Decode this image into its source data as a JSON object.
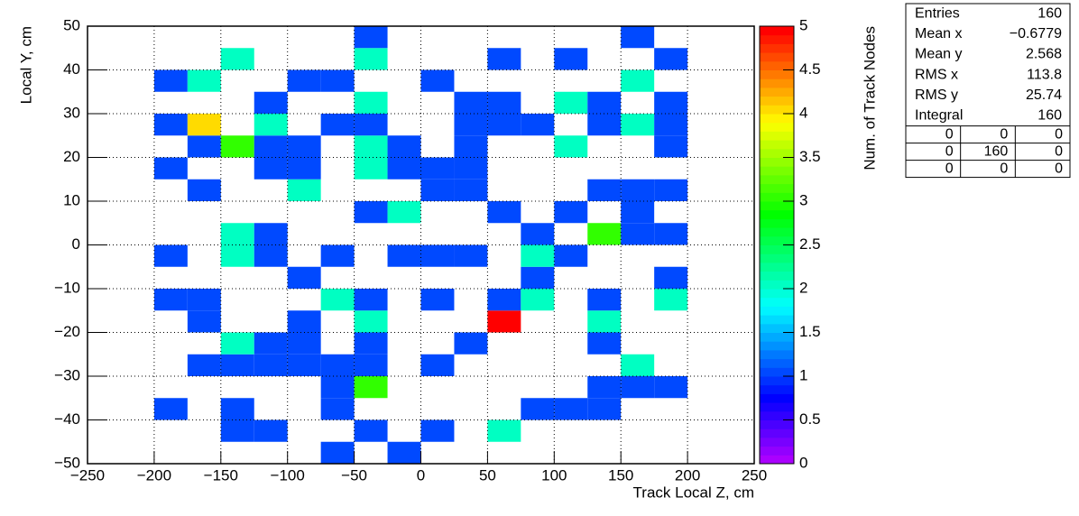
{
  "chart_data": {
    "type": "heatmap",
    "xlabel": "Track Local Z, cm",
    "ylabel": "Local Y, cm",
    "zlabel": "Num. of Track Nodes",
    "xbins": [
      -250,
      -225,
      -200,
      -175,
      -150,
      -125,
      -100,
      -75,
      -50,
      -25,
      0,
      25,
      50,
      75,
      100,
      125,
      150,
      175,
      200,
      225,
      250
    ],
    "ybins": [
      -50,
      -45,
      -40,
      -35,
      -30,
      -25,
      -20,
      -15,
      -10,
      -5,
      0,
      5,
      10,
      15,
      20,
      25,
      30,
      35,
      40,
      45,
      50
    ],
    "z": [
      [
        0,
        0,
        0,
        0,
        0,
        0,
        0,
        1,
        0,
        1,
        0,
        0,
        0,
        0,
        0,
        0,
        0,
        0,
        0,
        0
      ],
      [
        0,
        0,
        0,
        0,
        1,
        1,
        0,
        0,
        1,
        0,
        1,
        0,
        2,
        0,
        0,
        0,
        0,
        0,
        0,
        0
      ],
      [
        0,
        0,
        1,
        0,
        1,
        0,
        0,
        1,
        0,
        0,
        0,
        0,
        0,
        1,
        1,
        1,
        0,
        0,
        0,
        0
      ],
      [
        0,
        0,
        0,
        0,
        0,
        0,
        0,
        1,
        3,
        0,
        0,
        0,
        0,
        0,
        0,
        1,
        1,
        1,
        0,
        0
      ],
      [
        0,
        0,
        0,
        1,
        1,
        1,
        1,
        1,
        1,
        0,
        1,
        0,
        0,
        0,
        0,
        0,
        2,
        0,
        0,
        0
      ],
      [
        0,
        0,
        0,
        0,
        2,
        1,
        1,
        0,
        1,
        0,
        0,
        1,
        0,
        0,
        0,
        1,
        0,
        0,
        0,
        0
      ],
      [
        0,
        0,
        0,
        1,
        0,
        0,
        1,
        0,
        2,
        0,
        0,
        0,
        5,
        0,
        0,
        2,
        0,
        0,
        0,
        0
      ],
      [
        0,
        0,
        1,
        1,
        0,
        0,
        0,
        2,
        1,
        0,
        1,
        0,
        1,
        2,
        0,
        1,
        0,
        2,
        0,
        0
      ],
      [
        0,
        0,
        0,
        0,
        0,
        0,
        1,
        0,
        0,
        0,
        0,
        0,
        0,
        1,
        0,
        0,
        0,
        1,
        0,
        0
      ],
      [
        0,
        0,
        1,
        0,
        2,
        1,
        0,
        1,
        0,
        1,
        1,
        1,
        0,
        2,
        1,
        0,
        0,
        0,
        0,
        0
      ],
      [
        0,
        0,
        0,
        0,
        2,
        1,
        0,
        0,
        0,
        0,
        0,
        0,
        0,
        1,
        0,
        3,
        1,
        1,
        0,
        0
      ],
      [
        0,
        0,
        0,
        0,
        0,
        0,
        0,
        0,
        1,
        2,
        0,
        0,
        1,
        0,
        1,
        0,
        1,
        0,
        0,
        0
      ],
      [
        0,
        0,
        0,
        1,
        0,
        0,
        2,
        0,
        0,
        0,
        1,
        1,
        0,
        0,
        0,
        1,
        1,
        1,
        0,
        0
      ],
      [
        0,
        0,
        1,
        0,
        0,
        1,
        1,
        0,
        2,
        1,
        1,
        1,
        0,
        0,
        0,
        0,
        0,
        0,
        0,
        0
      ],
      [
        0,
        0,
        0,
        1,
        3,
        1,
        1,
        0,
        2,
        1,
        0,
        1,
        0,
        0,
        2,
        0,
        0,
        1,
        0,
        0
      ],
      [
        0,
        0,
        1,
        4,
        0,
        2,
        0,
        1,
        1,
        0,
        0,
        1,
        1,
        1,
        0,
        1,
        2,
        1,
        0,
        0
      ],
      [
        0,
        0,
        0,
        0,
        0,
        1,
        0,
        0,
        2,
        0,
        0,
        1,
        1,
        0,
        2,
        1,
        0,
        1,
        0,
        0
      ],
      [
        0,
        0,
        1,
        2,
        0,
        0,
        1,
        1,
        0,
        0,
        1,
        0,
        0,
        0,
        0,
        0,
        2,
        0,
        0,
        0
      ],
      [
        0,
        0,
        0,
        0,
        2,
        0,
        0,
        0,
        2,
        0,
        0,
        0,
        1,
        0,
        1,
        0,
        0,
        1,
        0,
        0
      ],
      [
        0,
        0,
        0,
        0,
        0,
        0,
        0,
        0,
        1,
        0,
        0,
        0,
        0,
        0,
        0,
        0,
        1,
        0,
        0,
        0
      ]
    ],
    "xlim": [
      -250,
      250
    ],
    "xticks": [
      {
        "value": -250,
        "label": "−250"
      },
      {
        "value": -200,
        "label": "−200"
      },
      {
        "value": -150,
        "label": "−150"
      },
      {
        "value": -100,
        "label": "−100"
      },
      {
        "value": -50,
        "label": "−50"
      },
      0,
      50,
      100,
      150,
      200,
      250
    ],
    "ylim": [
      -50,
      50
    ],
    "yticks": [
      {
        "value": -50,
        "label": "−50"
      },
      {
        "value": -40,
        "label": "−40"
      },
      {
        "value": -30,
        "label": "−30"
      },
      {
        "value": -20,
        "label": "−20"
      },
      {
        "value": -10,
        "label": "−10"
      },
      0,
      10,
      20,
      30,
      40,
      50
    ],
    "zlim": [
      0,
      5
    ],
    "zticks": [
      0,
      0.5,
      1,
      1.5,
      2,
      2.5,
      3,
      3.5,
      4,
      4.5,
      5
    ],
    "grid": true,
    "stats": {
      "rows": [
        [
          "Entries",
          "160"
        ],
        [
          "Mean x",
          "−0.6779"
        ],
        [
          "Mean y",
          "2.568"
        ],
        [
          "RMS x",
          "113.8"
        ],
        [
          "RMS y",
          "25.74"
        ],
        [
          "Integral",
          "160"
        ]
      ],
      "table": [
        [
          "0",
          "0",
          "0"
        ],
        [
          "0",
          "160",
          "0"
        ],
        [
          "0",
          "0",
          "0"
        ]
      ]
    }
  }
}
